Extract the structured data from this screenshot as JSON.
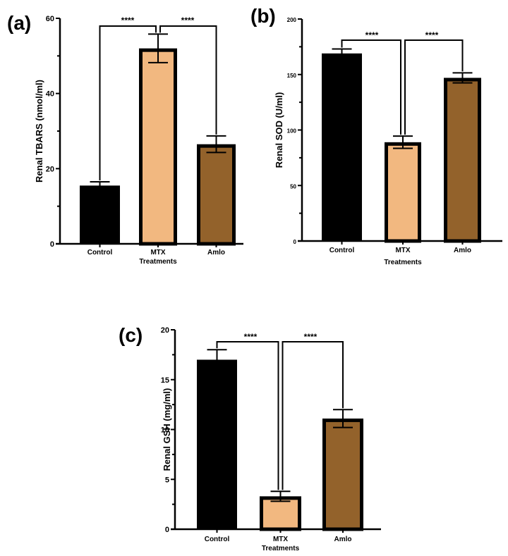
{
  "colors": {
    "Control": "#000000",
    "MTX": "#f2b880",
    "Amlo": "#93622b"
  },
  "chart_data": [
    {
      "panel": "(a)",
      "type": "bar",
      "categories": [
        "Control",
        "MTX",
        "Amlo"
      ],
      "values": [
        15.5,
        52,
        26.5
      ],
      "errors": [
        1.0,
        3.8,
        2.2
      ],
      "xlabel": "Treatments",
      "ylabel": "Renal TBARS (nmol/ml)",
      "ylim": [
        0,
        60
      ],
      "yticks": [
        0,
        20,
        40,
        60
      ],
      "yminor": [
        10,
        30,
        50
      ],
      "significance": [
        {
          "from": "Control",
          "to": "MTX",
          "label": "****"
        },
        {
          "from": "MTX",
          "to": "Amlo",
          "label": "****"
        }
      ],
      "grid": false
    },
    {
      "panel": "(b)",
      "type": "bar",
      "categories": [
        "Control",
        "MTX",
        "Amlo"
      ],
      "values": [
        169,
        89,
        147
      ],
      "errors": [
        4,
        5.5,
        4.5
      ],
      "xlabel": "Treatments",
      "ylabel": "Renal SOD (U/ml)",
      "ylim": [
        0,
        200
      ],
      "yticks": [
        0,
        50,
        100,
        150,
        200
      ],
      "yminor": [
        25,
        75,
        125,
        175
      ],
      "significance": [
        {
          "from": "Control",
          "to": "MTX",
          "label": "****"
        },
        {
          "from": "MTX",
          "to": "Amlo",
          "label": "****"
        }
      ],
      "grid": false
    },
    {
      "panel": "(c)",
      "type": "bar",
      "categories": [
        "Control",
        "MTX",
        "Amlo"
      ],
      "values": [
        17,
        3.3,
        11.1
      ],
      "errors": [
        1.0,
        0.5,
        0.9
      ],
      "xlabel": "Treatments",
      "ylabel": "Renal GSH (mg/ml)",
      "ylim": [
        0,
        20
      ],
      "yticks": [
        0,
        5,
        10,
        15,
        20
      ],
      "yminor": [
        2.5,
        7.5,
        12.5,
        17.5
      ],
      "significance": [
        {
          "from": "Control",
          "to": "MTX",
          "label": "****"
        },
        {
          "from": "MTX",
          "to": "Amlo",
          "label": "****"
        }
      ],
      "grid": false
    }
  ]
}
